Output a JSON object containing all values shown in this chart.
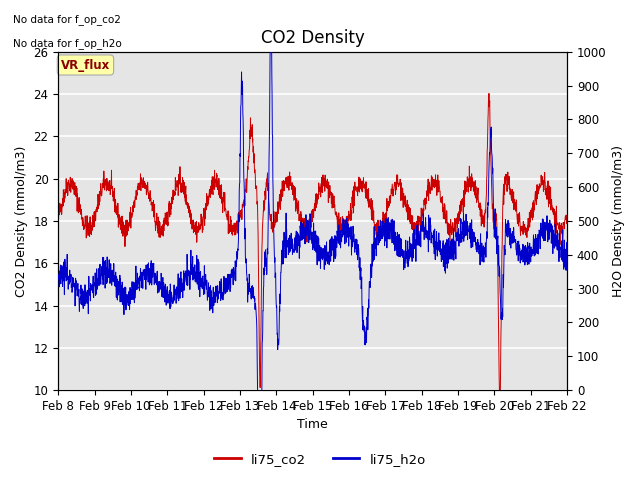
{
  "title": "CO2 Density",
  "xlabel": "Time",
  "ylabel_left": "CO2 Density (mmol/m3)",
  "ylabel_right": "H2O Density (mmol/m3)",
  "ylim_left": [
    10,
    26
  ],
  "ylim_right": [
    0,
    1000
  ],
  "yticks_left": [
    10,
    12,
    14,
    16,
    18,
    20,
    22,
    24,
    26
  ],
  "yticks_right": [
    0,
    100,
    200,
    300,
    400,
    500,
    600,
    700,
    800,
    900,
    1000
  ],
  "xtick_labels": [
    "Feb 8",
    "Feb 9",
    "Feb 10",
    "Feb 11",
    "Feb 12",
    "Feb 13",
    "Feb 14",
    "Feb 15",
    "Feb 16",
    "Feb 17",
    "Feb 18",
    "Feb 19",
    "Feb 20",
    "Feb 21",
    "Feb 22"
  ],
  "color_co2": "#cc0000",
  "color_h2o": "#0000cc",
  "legend_entries": [
    "li75_co2",
    "li75_h2o"
  ],
  "annotation_line1": "No data for f_op_co2",
  "annotation_line2": "No data for f_op_h2o",
  "vr_flux_label": "VR_flux",
  "background_color": "#e5e5e5",
  "grid_color": "white",
  "title_fontsize": 12,
  "label_fontsize": 9,
  "tick_fontsize": 8.5
}
